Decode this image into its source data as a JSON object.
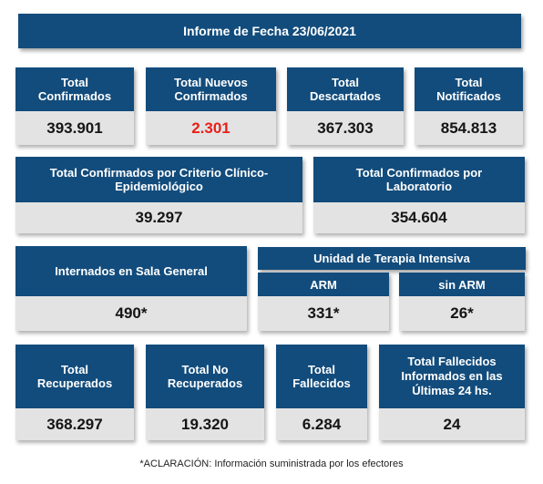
{
  "report_title": "Informe de Fecha 23/06/2021",
  "row1": {
    "confirmados": {
      "label": "Total\nConfirmados",
      "value": "393.901"
    },
    "nuevos": {
      "label": "Total Nuevos\nConfirmados",
      "value": "2.301"
    },
    "descartados": {
      "label": "Total\nDescartados",
      "value": "367.303"
    },
    "notificados": {
      "label": "Total\nNotificados",
      "value": "854.813"
    }
  },
  "row2": {
    "clinico": {
      "label": "Total Confirmados por Criterio Clínico-\nEpidemiológico",
      "value": "39.297"
    },
    "laboratorio": {
      "label": "Total Confirmados por\nLaboratorio",
      "value": "354.604"
    }
  },
  "row3": {
    "sala_general": {
      "label": "Internados en Sala General",
      "value": "490*"
    },
    "uti": {
      "label": "Unidad de Terapia Intensiva"
    },
    "arm": {
      "label": "ARM",
      "value": "331*"
    },
    "sin_arm": {
      "label": "sin ARM",
      "value": "26*"
    }
  },
  "row4": {
    "recuperados": {
      "label": "Total\nRecuperados",
      "value": "368.297"
    },
    "no_recuperados": {
      "label": "Total No\nRecuperados",
      "value": "19.320"
    },
    "fallecidos": {
      "label": "Total\nFallecidos",
      "value": "6.284"
    },
    "fallecidos_24h": {
      "label": "Total Fallecidos\nInformados en las\nÚltimas 24 hs.",
      "value": "24"
    }
  },
  "footnote": "*ACLARACIÓN: Información suministrada por los efectores",
  "colors": {
    "header_bg": "#124c7c",
    "value_bg": "#e3e3e3",
    "highlight": "#e8201a"
  }
}
